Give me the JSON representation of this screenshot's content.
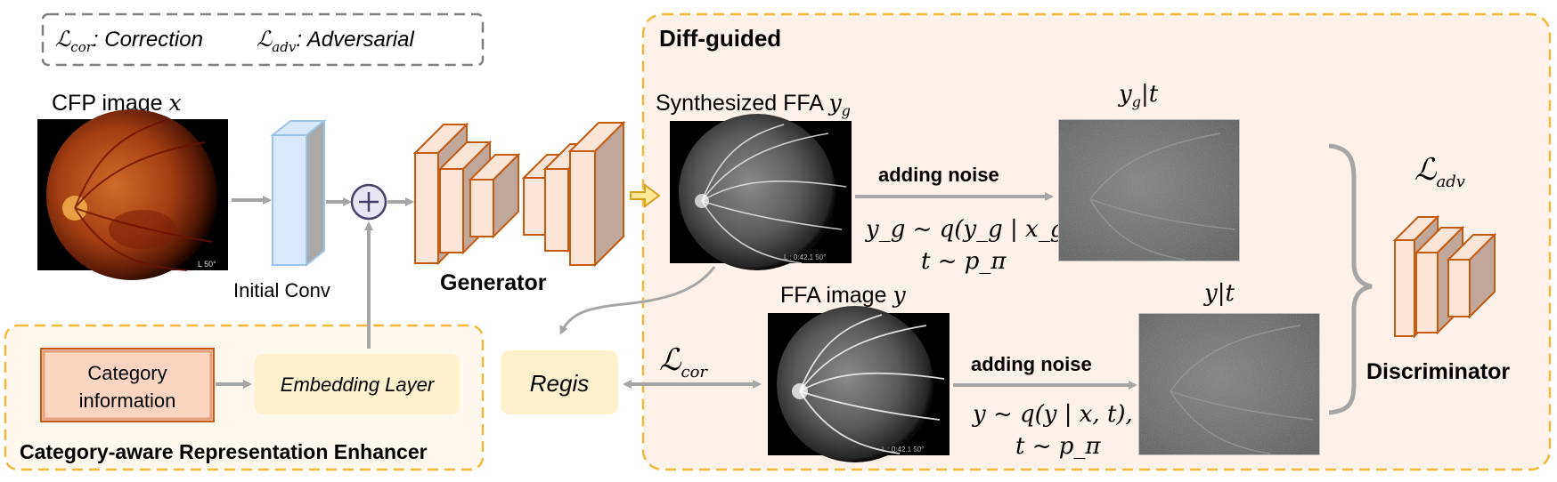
{
  "legend": {
    "cor_symbol": "ℒ",
    "cor_sub": "cor",
    "cor_text": ": Correction",
    "adv_symbol": "ℒ",
    "adv_sub": "adv",
    "adv_text": ": Adversarial"
  },
  "diff_guided_title": "Diff-guided",
  "cfp": {
    "label": "CFP image ",
    "var": "x",
    "corner_mark": "L  50°"
  },
  "initial_conv_label": "Initial Conv",
  "generator_label": "Generator",
  "synth": {
    "label": "Synthesized FFA ",
    "var": "y",
    "sub": "g",
    "overlay": "L : 0:42.1   50°"
  },
  "noise_top": {
    "label": "adding noise",
    "eq1": "y_g ~ q(y_g | x_g, t),",
    "eq2": "t ~ p_π"
  },
  "yg_t": {
    "var": "y",
    "sub": "g",
    "rest": "|t"
  },
  "ffa": {
    "label": "FFA image ",
    "var": "y",
    "overlay": "L : 0:42.1   50°"
  },
  "noise_bottom": {
    "label": "adding noise",
    "eq1": "y ~ q(y | x, t),",
    "eq2": "t ~ p_π"
  },
  "y_t": {
    "text": "y|t"
  },
  "loss_adv": {
    "symbol": "ℒ",
    "sub": "adv"
  },
  "loss_cor": {
    "symbol": "ℒ",
    "sub": "cor"
  },
  "discriminator_label": "Discriminator",
  "regis_label": "Regis",
  "category_box": {
    "line1": "Category",
    "line2": "information"
  },
  "embedding_label": "Embedding Layer",
  "enhancer_title": "Category-aware Representation Enhancer",
  "colors": {
    "orange_stroke": "#C55A11",
    "orange_fill": "#FBE5D6",
    "orange_side": "#C0A79B",
    "yellow_dash": "#F4B93B",
    "diff_bg": "#FDF1EA",
    "enh_bg": "#FEF8EE",
    "yellow_box": "#FFF1CC",
    "arrow_gray": "#A6A6A6",
    "conv_blue": "#DAE8FC",
    "conv_stroke": "#9DC3E6"
  }
}
